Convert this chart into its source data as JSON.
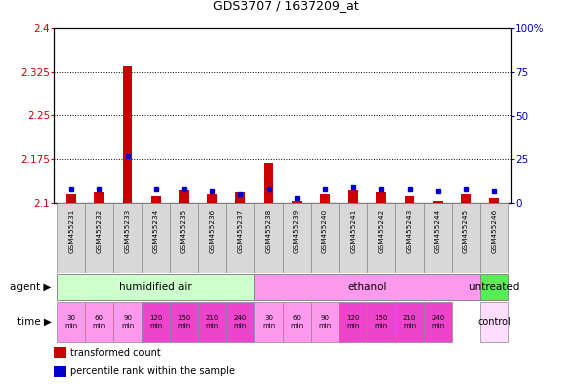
{
  "title": "GDS3707 / 1637209_at",
  "samples": [
    "GSM455231",
    "GSM455232",
    "GSM455233",
    "GSM455234",
    "GSM455235",
    "GSM455236",
    "GSM455237",
    "GSM455238",
    "GSM455239",
    "GSM455240",
    "GSM455241",
    "GSM455242",
    "GSM455243",
    "GSM455244",
    "GSM455245",
    "GSM455246"
  ],
  "transformed_count": [
    2.115,
    2.118,
    2.335,
    2.112,
    2.122,
    2.115,
    2.118,
    2.168,
    2.103,
    2.115,
    2.122,
    2.118,
    2.112,
    2.103,
    2.115,
    2.108
  ],
  "percentile_rank": [
    8,
    8,
    27,
    8,
    8,
    7,
    5,
    8,
    3,
    8,
    9,
    8,
    8,
    7,
    8,
    7
  ],
  "ylim_left": [
    2.1,
    2.4
  ],
  "ylim_right": [
    0,
    100
  ],
  "yticks_left": [
    2.1,
    2.175,
    2.25,
    2.325,
    2.4
  ],
  "yticks_right": [
    0,
    25,
    50,
    75,
    100
  ],
  "grid_lines": [
    2.175,
    2.25,
    2.325
  ],
  "agent_groups": [
    {
      "label": "humidified air",
      "start": 0,
      "end": 7,
      "color": "#ccffcc"
    },
    {
      "label": "ethanol",
      "start": 7,
      "end": 15,
      "color": "#ff99ee"
    },
    {
      "label": "untreated",
      "start": 15,
      "end": 16,
      "color": "#55ee55"
    }
  ],
  "time_labels": [
    "30\nmin",
    "60\nmin",
    "90\nmin",
    "120\nmin",
    "150\nmin",
    "210\nmin",
    "240\nmin",
    "30\nmin",
    "60\nmin",
    "90\nmin",
    "120\nmin",
    "150\nmin",
    "210\nmin",
    "240\nmin"
  ],
  "time_colors": [
    "#ff99ee",
    "#ff99ee",
    "#ff99ee",
    "#ee44cc",
    "#ee44cc",
    "#ee44cc",
    "#ee44cc",
    "#ff99ee",
    "#ff99ee",
    "#ff99ee",
    "#ee44cc",
    "#ee44cc",
    "#ee44cc",
    "#ee44cc"
  ],
  "control_label": "control",
  "control_color": "#ffddff",
  "bar_color_red": "#cc0000",
  "bar_color_blue": "#0000cc",
  "background_color": "#ffffff",
  "left_label_color": "#cc0000",
  "right_label_color": "#0000bb",
  "sample_box_color": "#d8d8d8",
  "sample_box_edge": "#888888"
}
